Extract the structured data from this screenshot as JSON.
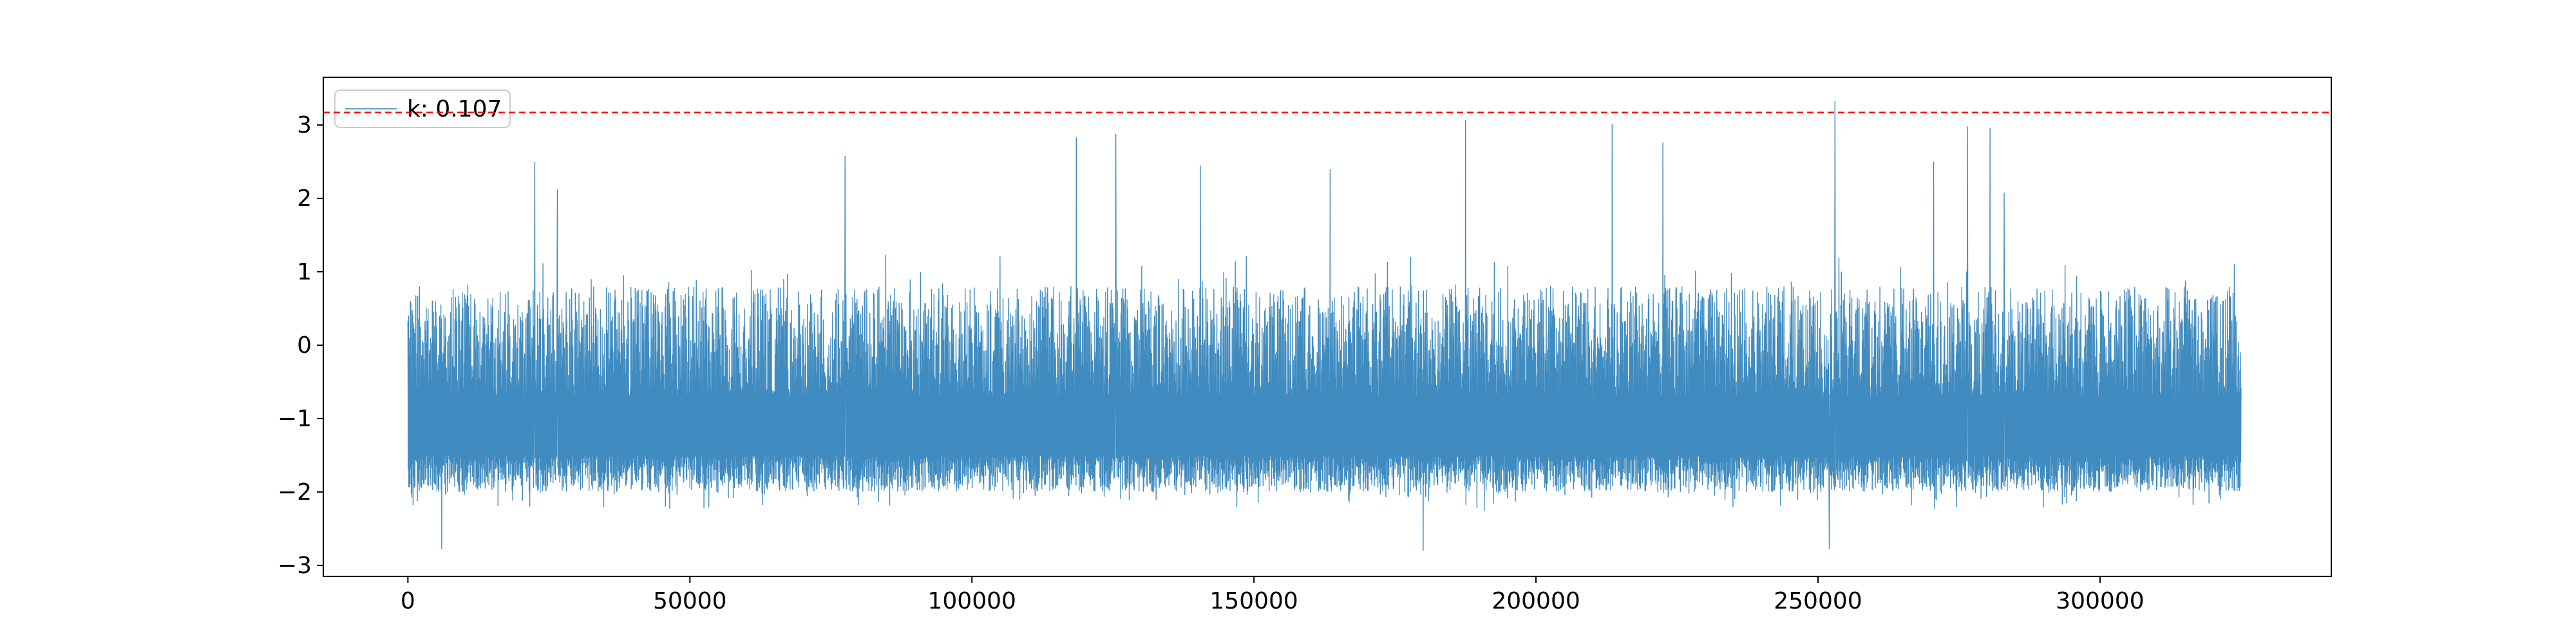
{
  "chart_data": {
    "type": "line",
    "title": "",
    "xlabel": "",
    "ylabel": "",
    "xlim": [
      -15000,
      341000
    ],
    "ylim": [
      -3.15,
      3.65
    ],
    "grid": false,
    "legend_placement": "upper-left",
    "x_ticks": [
      0,
      50000,
      100000,
      150000,
      200000,
      250000,
      300000
    ],
    "y_ticks": [
      -3,
      -2,
      -1,
      0,
      1,
      2,
      3
    ],
    "x_tick_labels": [
      "0",
      "50000",
      "100000",
      "150000",
      "200000",
      "250000",
      "300000"
    ],
    "y_tick_labels": [
      "−3",
      "−2",
      "−1",
      "0",
      "1",
      "2",
      "3"
    ],
    "series": [
      {
        "name": "k: 0.107",
        "color": "#1f77b4",
        "x_start": 0,
        "x_end": 325000,
        "typical_low": -2.0,
        "typical_high": 0.8,
        "notable_points": [
          {
            "x": 6000,
            "y": -2.78
          },
          {
            "x": 22500,
            "y": 2.5
          },
          {
            "x": 26500,
            "y": 2.12
          },
          {
            "x": 77500,
            "y": 2.58
          },
          {
            "x": 118500,
            "y": 2.83
          },
          {
            "x": 125500,
            "y": 2.88
          },
          {
            "x": 140500,
            "y": 2.45
          },
          {
            "x": 163500,
            "y": 2.4
          },
          {
            "x": 180000,
            "y": -2.8
          },
          {
            "x": 187500,
            "y": 3.07
          },
          {
            "x": 213500,
            "y": 3.01
          },
          {
            "x": 222500,
            "y": 2.76
          },
          {
            "x": 252000,
            "y": -2.78
          },
          {
            "x": 253000,
            "y": 3.33
          },
          {
            "x": 270500,
            "y": 2.5
          },
          {
            "x": 276500,
            "y": 2.98
          },
          {
            "x": 280500,
            "y": 2.96
          },
          {
            "x": 283000,
            "y": 2.08
          }
        ]
      }
    ],
    "threshold_line": {
      "y": 3.17,
      "color": "#ff0000",
      "style": "dashed"
    }
  }
}
